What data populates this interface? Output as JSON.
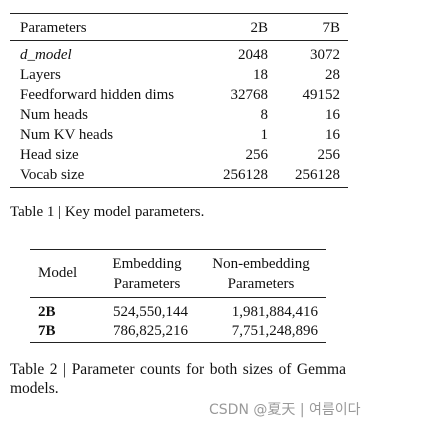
{
  "table1": {
    "header": [
      "Parameters",
      "2B",
      "7B"
    ],
    "rows": [
      [
        "d_model",
        "2048",
        "3072"
      ],
      [
        "Layers",
        "18",
        "28"
      ],
      [
        "Feedforward hidden dims",
        "32768",
        "49152"
      ],
      [
        "Num heads",
        "8",
        "16"
      ],
      [
        "Num KV heads",
        "1",
        "16"
      ],
      [
        "Head size",
        "256",
        "256"
      ],
      [
        "Vocab size",
        "256128",
        "256128"
      ]
    ],
    "caption": "Table 1 | Key model parameters."
  },
  "table2": {
    "header": [
      "Model",
      "Embedding Parameters",
      "Non-embedding Parameters"
    ],
    "rows": [
      [
        "2B",
        "524,550,144",
        "1,981,884,416"
      ],
      [
        "7B",
        "786,825,216",
        "7,751,248,896"
      ]
    ],
    "caption": "Table 2 | Parameter counts for both sizes of Gemma models."
  },
  "watermark": "CSDN @夏天 | 여름이다"
}
